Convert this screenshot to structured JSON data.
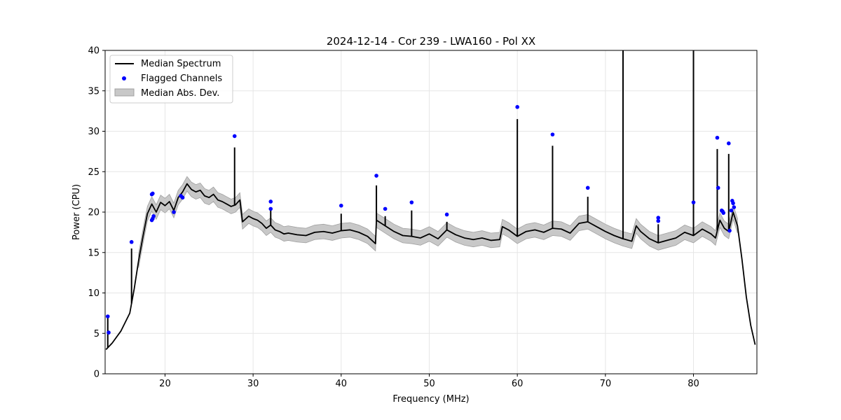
{
  "chart_data": {
    "type": "line",
    "title": "2024-12-14 - Cor 239 - LWA160 - Pol XX",
    "xlabel": "Frequency (MHz)",
    "ylabel": "Power (CPU)",
    "xlim": [
      13.2,
      87.2
    ],
    "ylim": [
      0,
      40
    ],
    "xticks": [
      20,
      30,
      40,
      50,
      60,
      70,
      80
    ],
    "yticks": [
      0,
      5,
      10,
      15,
      20,
      25,
      30,
      35,
      40
    ],
    "xtick_labels": [
      "20",
      "30",
      "40",
      "50",
      "60",
      "70",
      "80"
    ],
    "ytick_labels": [
      "0",
      "5",
      "10",
      "15",
      "20",
      "25",
      "30",
      "35",
      "40"
    ],
    "grid": true,
    "legend_position": "upper-left",
    "legend": [
      "Median Spectrum",
      "Flagged Channels",
      "Median Abs. Dev."
    ],
    "colors": {
      "median": "#000000",
      "flagged": "#0000ff",
      "mad_fill": "#c8c8c8",
      "mad_edge": "#a0a0a0",
      "grid": "#e6e6e6"
    },
    "series": [
      {
        "name": "Median Spectrum",
        "kind": "line",
        "x": [
          13.3,
          14.0,
          15.0,
          16.0,
          16.5,
          17.0,
          17.5,
          18.0,
          18.5,
          19.0,
          19.5,
          20.0,
          20.5,
          21.0,
          21.5,
          22.0,
          22.5,
          23.0,
          23.5,
          24.0,
          24.5,
          25.0,
          25.5,
          26.0,
          26.5,
          27.0,
          27.5,
          28.0,
          28.5,
          28.8,
          29.5,
          30.0,
          30.5,
          31.0,
          31.5,
          32.0,
          32.5,
          33.0,
          33.5,
          34.0,
          35.0,
          36.0,
          37.0,
          38.0,
          39.0,
          40.0,
          41.0,
          42.0,
          43.0,
          43.9,
          44.0,
          45.0,
          46.0,
          47.0,
          48.0,
          49.0,
          50.0,
          51.0,
          52.0,
          53.0,
          54.0,
          55.0,
          56.0,
          57.0,
          58.0,
          58.3,
          59.0,
          60.0,
          61.0,
          62.0,
          63.0,
          64.0,
          65.0,
          66.0,
          67.0,
          68.0,
          69.0,
          70.0,
          71.0,
          72.0,
          73.0,
          73.5,
          74.0,
          75.0,
          76.0,
          77.0,
          78.0,
          79.0,
          80.0,
          81.0,
          82.0,
          82.5,
          83.0,
          83.5,
          84.0,
          84.5,
          85.0,
          85.5,
          86.0,
          86.5,
          87.0
        ],
        "y": [
          3.0,
          3.8,
          5.3,
          7.5,
          10.5,
          14.0,
          17.0,
          19.8,
          21.0,
          20.0,
          21.2,
          20.8,
          21.3,
          20.2,
          21.8,
          22.5,
          23.5,
          22.8,
          22.5,
          22.7,
          22.0,
          21.8,
          22.2,
          21.5,
          21.3,
          21.0,
          20.7,
          20.9,
          21.5,
          18.8,
          19.5,
          19.2,
          19.0,
          18.6,
          18.0,
          18.4,
          17.8,
          17.6,
          17.3,
          17.4,
          17.2,
          17.1,
          17.5,
          17.6,
          17.4,
          17.7,
          17.8,
          17.5,
          17.0,
          16.1,
          19.0,
          18.3,
          17.6,
          17.1,
          17.0,
          16.8,
          17.3,
          16.7,
          17.8,
          17.2,
          16.8,
          16.6,
          16.8,
          16.5,
          16.6,
          18.2,
          17.8,
          17.0,
          17.6,
          17.8,
          17.5,
          18.0,
          17.9,
          17.4,
          18.6,
          18.8,
          18.2,
          17.6,
          17.1,
          16.7,
          16.4,
          18.3,
          17.6,
          16.7,
          16.2,
          16.5,
          16.8,
          17.5,
          17.1,
          17.9,
          17.3,
          16.8,
          19.0,
          18.0,
          17.6,
          20.0,
          18.3,
          14.2,
          9.5,
          6.0,
          3.6
        ]
      },
      {
        "name": "Flagged Channels",
        "kind": "scatter",
        "x": [
          13.5,
          13.6,
          16.2,
          18.5,
          18.6,
          18.7,
          18.5,
          18.6,
          21.0,
          21.8,
          22.0,
          27.9,
          32.0,
          32.0,
          40.0,
          44.0,
          45.0,
          48.0,
          52.0,
          60.0,
          64.0,
          68.0,
          76.0,
          76.0,
          80.0,
          82.7,
          82.8,
          83.2,
          83.3,
          83.4,
          84.0,
          84.1,
          84.3,
          84.4,
          84.5,
          84.6
        ],
        "y": [
          7.1,
          5.1,
          16.3,
          22.2,
          22.3,
          19.5,
          19.0,
          19.2,
          20.0,
          22.0,
          21.8,
          29.4,
          21.3,
          20.4,
          20.8,
          24.5,
          20.4,
          21.2,
          19.7,
          33.0,
          29.6,
          23.0,
          19.3,
          18.9,
          21.2,
          29.2,
          23.0,
          20.2,
          20.1,
          19.9,
          28.5,
          17.7,
          20.2,
          21.4,
          21.1,
          20.6
        ]
      }
    ],
    "spikes": [
      {
        "x": 13.5,
        "top": 7.0
      },
      {
        "x": 16.2,
        "top": 15.5
      },
      {
        "x": 27.9,
        "top": 28.0
      },
      {
        "x": 32.0,
        "top": 20.2
      },
      {
        "x": 40.0,
        "top": 19.8
      },
      {
        "x": 44.0,
        "top": 23.3
      },
      {
        "x": 45.0,
        "top": 19.5
      },
      {
        "x": 48.0,
        "top": 20.2
      },
      {
        "x": 52.0,
        "top": 18.8
      },
      {
        "x": 60.0,
        "top": 31.5
      },
      {
        "x": 64.0,
        "top": 28.2
      },
      {
        "x": 68.0,
        "top": 21.9
      },
      {
        "x": 72.0,
        "top": 40.0
      },
      {
        "x": 76.0,
        "top": 18.5
      },
      {
        "x": 80.0,
        "top": 40.0
      },
      {
        "x": 82.7,
        "top": 27.8
      },
      {
        "x": 84.0,
        "top": 27.2
      }
    ],
    "mad_halfwidth": 0.9
  }
}
